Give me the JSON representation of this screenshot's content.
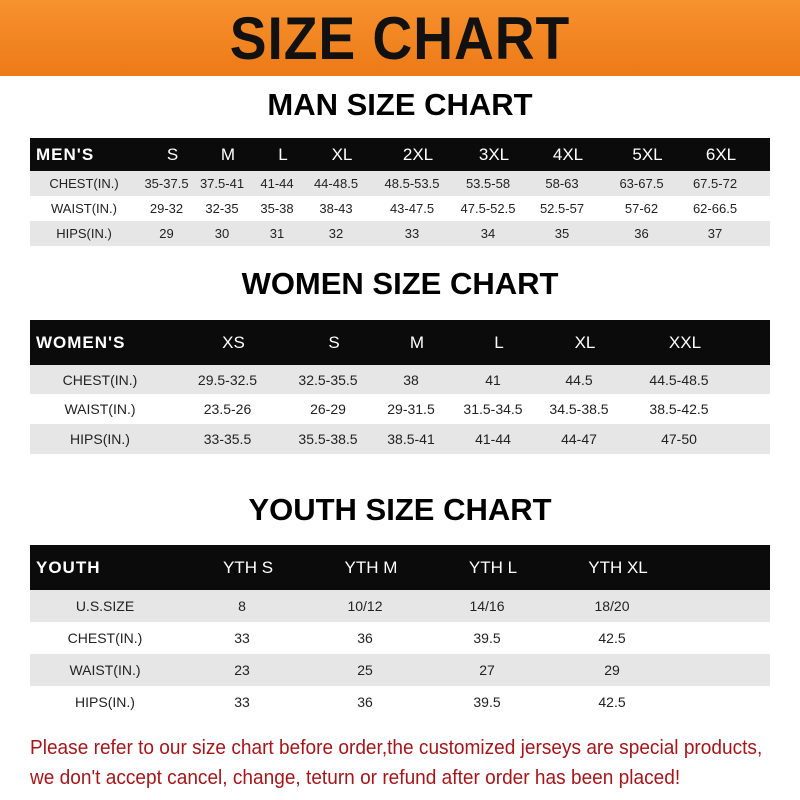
{
  "banner": "SIZE CHART",
  "men": {
    "title": "MAN SIZE CHART",
    "header": [
      "MEN'S",
      "S",
      "M",
      "L",
      "XL",
      "2XL",
      "3XL",
      "4XL",
      "5XL",
      "6XL"
    ],
    "rows": [
      [
        "CHEST(IN.)",
        "35-37.5",
        "37.5-41",
        "41-44",
        "44-48.5",
        "48.5-53.5",
        "53.5-58",
        "58-63",
        "63-67.5",
        "67.5-72"
      ],
      [
        "WAIST(IN.)",
        "29-32",
        "32-35",
        "35-38",
        "38-43",
        "43-47.5",
        "47.5-52.5",
        "52.5-57",
        "57-62",
        "62-66.5"
      ],
      [
        "HIPS(IN.)",
        "29",
        "30",
        "31",
        "32",
        "33",
        "34",
        "35",
        "36",
        "37"
      ]
    ]
  },
  "women": {
    "title": "WOMEN SIZE CHART",
    "header": [
      "WOMEN'S",
      "XS",
      "S",
      "M",
      "L",
      "XL",
      "XXL"
    ],
    "rows": [
      [
        "CHEST(IN.)",
        "29.5-32.5",
        "32.5-35.5",
        "38",
        "41",
        "44.5",
        "44.5-48.5"
      ],
      [
        "WAIST(IN.)",
        "23.5-26",
        "26-29",
        "29-31.5",
        "31.5-34.5",
        "34.5-38.5",
        "38.5-42.5"
      ],
      [
        "HIPS(IN.)",
        "33-35.5",
        "35.5-38.5",
        "38.5-41",
        "41-44",
        "44-47",
        "47-50"
      ]
    ]
  },
  "youth": {
    "title": "YOUTH SIZE CHART",
    "header": [
      "YOUTH",
      "YTH S",
      "YTH M",
      "YTH L",
      "YTH XL"
    ],
    "rows": [
      [
        "U.S.SIZE",
        "8",
        "10/12",
        "14/16",
        "18/20"
      ],
      [
        "CHEST(IN.)",
        "33",
        "36",
        "39.5",
        "42.5"
      ],
      [
        "WAIST(IN.)",
        "23",
        "25",
        "27",
        "29"
      ],
      [
        "HIPS(IN.)",
        "33",
        "36",
        "39.5",
        "42.5"
      ]
    ]
  },
  "note": {
    "line1": "Please refer to our size chart before order,the customized jerseys are special products,",
    "line2": "we don't accept cancel, change, teturn or refund after order has been placed!"
  },
  "colors": {
    "banner": "#f08324",
    "header_row": "#0b0b0b",
    "stripe": "#e6e6e6",
    "note": "#a3161a"
  }
}
